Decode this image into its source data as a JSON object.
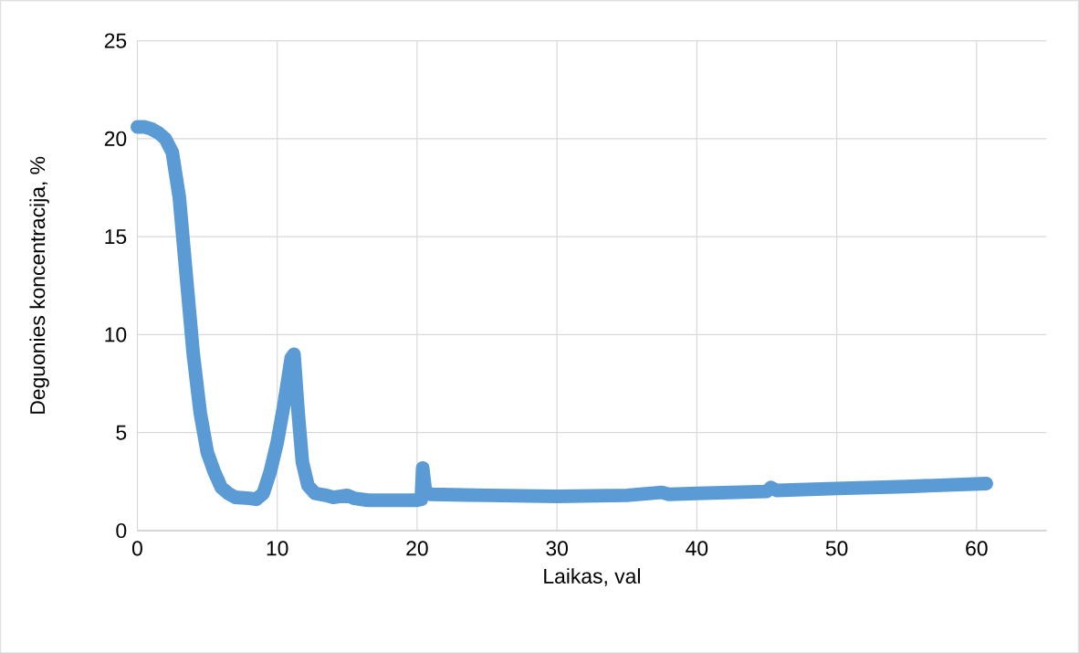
{
  "chart_data": {
    "type": "line",
    "xlabel": "Laikas, val",
    "ylabel": "Deguonies koncentracija, %",
    "xlim": [
      0,
      65
    ],
    "xticks": [
      0,
      10,
      20,
      30,
      40,
      50,
      60
    ],
    "ylim": [
      0,
      25
    ],
    "yticks": [
      0,
      5,
      10,
      15,
      20,
      25
    ],
    "grid": true,
    "series": [
      {
        "color": "#5b9bd5",
        "x": [
          0,
          0.5,
          1,
          1.5,
          2,
          2.5,
          3,
          3.5,
          4,
          4.5,
          5,
          5.5,
          6,
          6.5,
          7,
          8,
          8.5,
          9,
          9.5,
          10,
          10.5,
          11,
          11.2,
          11.5,
          11.8,
          12.2,
          12.7,
          13.5,
          14,
          15,
          15.5,
          16.5,
          18,
          20,
          20.3,
          20.4,
          20.6,
          21,
          25,
          30,
          35,
          37.5,
          38,
          40,
          45,
          45.3,
          45.7,
          50,
          55,
          60.7
        ],
        "values": [
          20.6,
          20.6,
          20.5,
          20.3,
          20.0,
          19.3,
          17,
          13,
          9,
          6,
          4,
          3,
          2.2,
          1.9,
          1.7,
          1.65,
          1.6,
          1.9,
          3,
          4.5,
          6.5,
          8.8,
          9.0,
          6,
          3.5,
          2.3,
          1.9,
          1.8,
          1.7,
          1.8,
          1.65,
          1.55,
          1.55,
          1.55,
          1.6,
          3.2,
          2.0,
          1.85,
          1.8,
          1.75,
          1.8,
          1.95,
          1.85,
          1.9,
          2.0,
          2.2,
          2.05,
          2.15,
          2.25,
          2.4
        ]
      }
    ]
  }
}
